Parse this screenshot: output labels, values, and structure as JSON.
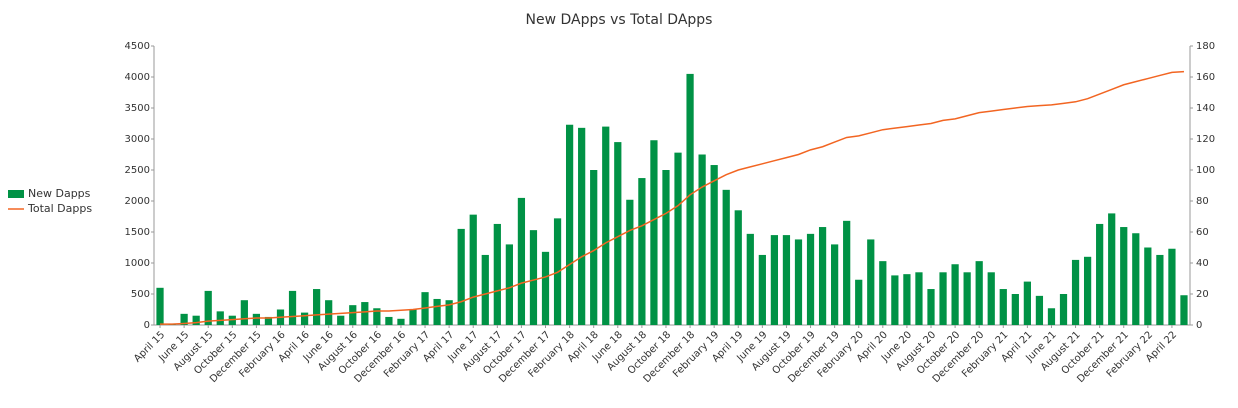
{
  "chart_data": {
    "type": "bar_line",
    "title": "New DApps vs Total DApps",
    "categories": [
      "April 15",
      null,
      "June 15",
      null,
      "August 15",
      null,
      "October 15",
      null,
      "December 15",
      null,
      "February 16",
      null,
      "April 16",
      null,
      "June 16",
      null,
      "August 16",
      null,
      "October 16",
      null,
      "December 16",
      null,
      "February 17",
      null,
      "April 17",
      null,
      "June 17",
      null,
      "August 17",
      null,
      "October 17",
      null,
      "December 17",
      null,
      "February 18",
      null,
      "April 18",
      null,
      "June 18",
      null,
      "August 18",
      null,
      "October 18",
      null,
      "December 18",
      null,
      "February 19",
      null,
      "April 19",
      null,
      "June 19",
      null,
      "August 19",
      null,
      "October 19",
      null,
      "December 19",
      null,
      "February 20",
      null,
      "April 20",
      null,
      "June 20",
      null,
      "August 20",
      null,
      "October 20",
      null,
      "December 20",
      null,
      "February 21",
      null,
      "April 21",
      null,
      "June 21",
      null,
      "August 21",
      null,
      "October 21",
      null,
      "December 21",
      null,
      "February 22",
      null,
      "April 22",
      null
    ],
    "series": [
      {
        "name": "New Dapps",
        "color": "#009245",
        "type": "bar",
        "axis": "y",
        "values": [
          600,
          10,
          180,
          150,
          550,
          220,
          150,
          400,
          180,
          130,
          250,
          550,
          200,
          580,
          400,
          150,
          320,
          370,
          270,
          130,
          100,
          250,
          530,
          420,
          400,
          1550,
          1780,
          1130,
          1630,
          1300,
          2050,
          1530,
          1180,
          1720,
          3230,
          3180,
          2500,
          3200,
          2950,
          2020,
          2370,
          2980,
          2500,
          2780,
          4050,
          2750,
          2580,
          2180,
          1850,
          1470,
          1130,
          1450,
          1450,
          1380,
          1470,
          1580,
          1300,
          1680,
          730,
          1380,
          1030,
          800,
          820,
          850,
          580,
          850,
          980,
          850,
          1030,
          850,
          580,
          500,
          700,
          470,
          270,
          500,
          1050,
          1100,
          1630,
          1800,
          1580,
          1480,
          1250,
          1130,
          1230,
          480
        ]
      },
      {
        "name": "Total Dapps",
        "color": "#f26522",
        "type": "line",
        "axis": "y2",
        "values": [
          0.6,
          0.6,
          1,
          1.5,
          2.5,
          3,
          3.5,
          4,
          4.5,
          4.5,
          5,
          5.5,
          6,
          6.5,
          7,
          7.5,
          8,
          8.5,
          9,
          9,
          9.5,
          10,
          11,
          12,
          13,
          15,
          18,
          20,
          22,
          24,
          27,
          29,
          31,
          34,
          39,
          44,
          48,
          53,
          57,
          61,
          64,
          68,
          72,
          77,
          84,
          89,
          93,
          97,
          100,
          102,
          104,
          106,
          108,
          110,
          113,
          115,
          118,
          121,
          122,
          124,
          126,
          127,
          128,
          129,
          130,
          132,
          133,
          135,
          137,
          138,
          139,
          140,
          141,
          141.5,
          142,
          143,
          144,
          146,
          149,
          152,
          155,
          157,
          159,
          161,
          163,
          163.5
        ]
      }
    ],
    "ylim": [
      0,
      4500
    ],
    "yticks": [
      0,
      500,
      1000,
      1500,
      2000,
      2500,
      3000,
      3500,
      4000,
      4500
    ],
    "y2lim": [
      0,
      180
    ],
    "y2ticks": [
      0,
      20,
      40,
      60,
      80,
      100,
      120,
      140,
      160,
      180
    ],
    "grid": false,
    "legend": "left"
  }
}
